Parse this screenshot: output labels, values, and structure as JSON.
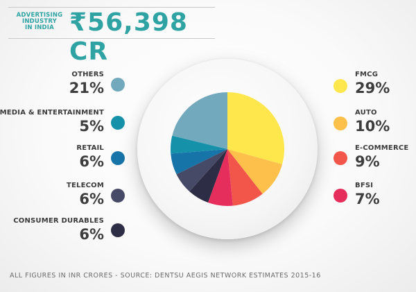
{
  "header": {
    "label": "ADVERTISING\nINDUSTRY\nIN INDIA",
    "value": "₹56,398 CR"
  },
  "source": "ALL FIGURES IN INR CRORES - SOURCE: DENTSU AEGIS NETWORK ESTIMATES 2015-16",
  "chart_data": {
    "type": "pie",
    "title": "",
    "unit": "%",
    "slices": [
      {
        "label": "FMCG",
        "value": 29,
        "display": "29%",
        "color": "#fde74c"
      },
      {
        "label": "AUTO",
        "value": 10,
        "display": "10%",
        "color": "#fdc04a"
      },
      {
        "label": "E-COMMERCE",
        "value": 9,
        "display": "9%",
        "color": "#f2564b"
      },
      {
        "label": "BFSI",
        "value": 7,
        "display": "7%",
        "color": "#e62e5c"
      },
      {
        "label": "CONSUMER DURABLES",
        "value": 6,
        "display": "6%",
        "color": "#2d2d45"
      },
      {
        "label": "TELECOM",
        "value": 6,
        "display": "6%",
        "color": "#474a66"
      },
      {
        "label": "RETAIL",
        "value": 6,
        "display": "6%",
        "color": "#1674a8"
      },
      {
        "label": "MEDIA & ENTERTAINMENT",
        "value": 5,
        "display": "5%",
        "color": "#1591aa"
      },
      {
        "label": "OTHERS",
        "value": 21,
        "display": "21%",
        "color": "#73a9bd"
      }
    ]
  }
}
